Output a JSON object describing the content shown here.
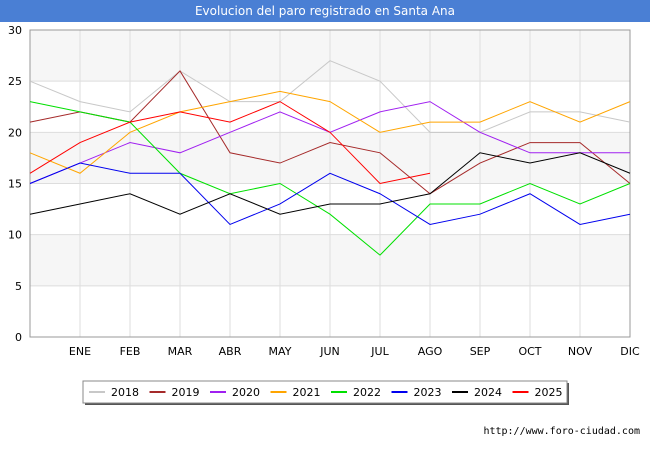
{
  "chart_data": {
    "type": "line",
    "title": "Evolucion del paro registrado en Santa Ana",
    "categories": [
      "",
      "ENE",
      "FEB",
      "MAR",
      "ABR",
      "MAY",
      "JUN",
      "JUL",
      "AGO",
      "SEP",
      "OCT",
      "NOV",
      "DIC"
    ],
    "ylim": [
      0,
      30
    ],
    "yticks": [
      0,
      5,
      10,
      15,
      20,
      25,
      30
    ],
    "xlabel": "",
    "ylabel": "",
    "grid": true,
    "legend_position": "bottom",
    "series": [
      {
        "name": "2018",
        "color": "#c8c8c8",
        "values": [
          25,
          23,
          22,
          26,
          23,
          23,
          27,
          25,
          20,
          20,
          22,
          22,
          21
        ]
      },
      {
        "name": "2019",
        "color": "#a52a2a",
        "values": [
          21,
          22,
          21,
          26,
          18,
          17,
          19,
          18,
          14,
          17,
          19,
          19,
          15
        ]
      },
      {
        "name": "2020",
        "color": "#a020f0",
        "values": [
          15,
          17,
          19,
          18,
          20,
          22,
          20,
          22,
          23,
          20,
          18,
          18,
          18
        ]
      },
      {
        "name": "2021",
        "color": "#ffa500",
        "values": [
          18,
          16,
          20,
          22,
          23,
          24,
          23,
          20,
          21,
          21,
          23,
          21,
          23
        ]
      },
      {
        "name": "2022",
        "color": "#00e000",
        "values": [
          23,
          22,
          21,
          16,
          14,
          15,
          12,
          8,
          13,
          13,
          15,
          13,
          15
        ]
      },
      {
        "name": "2023",
        "color": "#0000ee",
        "values": [
          15,
          17,
          16,
          16,
          11,
          13,
          16,
          14,
          11,
          12,
          14,
          11,
          12
        ]
      },
      {
        "name": "2024",
        "color": "#000000",
        "values": [
          12,
          13,
          14,
          12,
          14,
          12,
          13,
          13,
          14,
          18,
          17,
          18,
          16
        ]
      },
      {
        "name": "2025",
        "color": "#ff0000",
        "values": [
          16,
          19,
          21,
          22,
          21,
          23,
          20,
          15,
          16,
          null,
          null,
          null,
          null
        ]
      }
    ]
  },
  "footer": {
    "url": "http://www.foro-ciudad.com"
  }
}
